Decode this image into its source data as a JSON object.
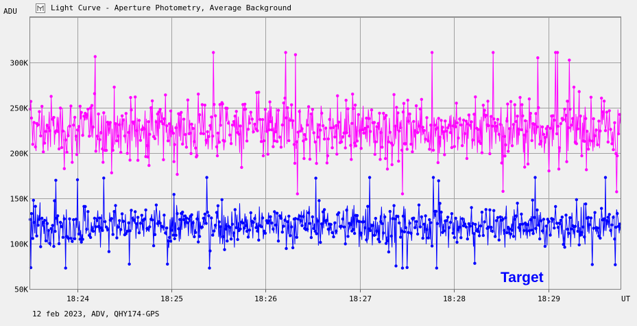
{
  "chart_data": {
    "type": "line",
    "title": "Light Curve - Aperture Photometry, Average Background",
    "ylabel": "ADU",
    "xlabel": "UT",
    "footer": "12 feb 2023, ADV, QHY174-GPS",
    "annotation": "Target",
    "y_ticks": [
      "50K",
      "100K",
      "150K",
      "200K",
      "250K",
      "300K"
    ],
    "y_tick_values": [
      50000,
      100000,
      150000,
      200000,
      250000,
      300000
    ],
    "ylim": [
      50000,
      350000
    ],
    "x_ticks": [
      "18:24",
      "18:25",
      "18:26",
      "18:27",
      "18:28",
      "18:29"
    ],
    "x_tick_minutes": [
      24,
      25,
      26,
      27,
      28,
      29
    ],
    "xlim": [
      "18:23:30",
      "18:29:46"
    ],
    "grid": true,
    "series": [
      {
        "name": "",
        "color": "#ff00ff",
        "x_start": "18:23:30",
        "x_end": "18:29:46",
        "points": 900,
        "mean": 226000,
        "min": 155000,
        "max": 311000
      },
      {
        "name": "Target",
        "color": "#0000ff",
        "x_start": "18:23:30",
        "x_end": "18:29:46",
        "points": 900,
        "mean": 120000,
        "min": 73000,
        "max": 173000
      }
    ]
  },
  "colors": {
    "background": "#f0f0f0",
    "grid": "#a0a0a0"
  }
}
